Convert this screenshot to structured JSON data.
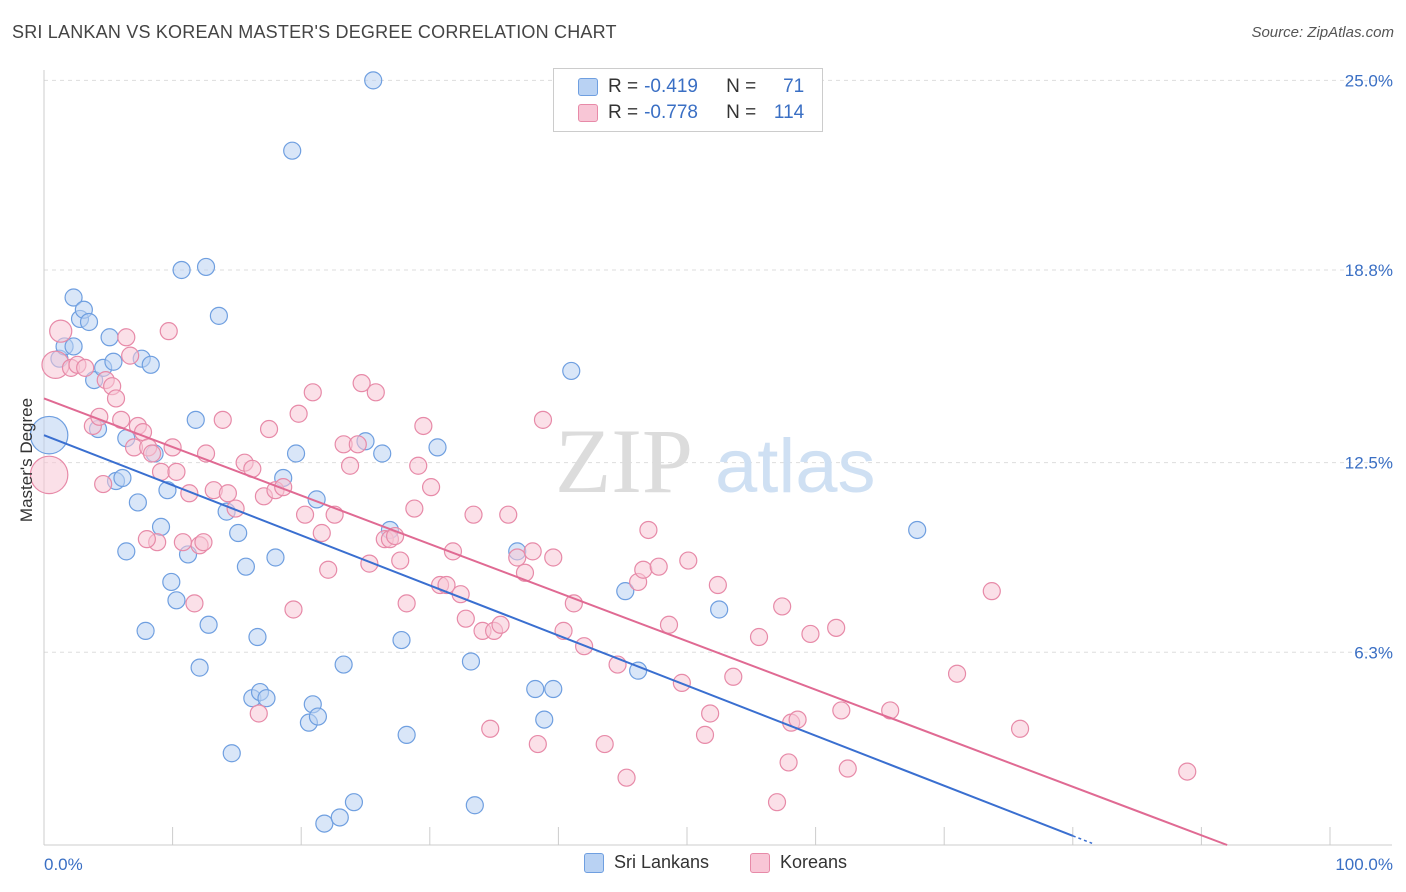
{
  "title": "SRI LANKAN VS KOREAN MASTER'S DEGREE CORRELATION CHART",
  "source": "Source: ZipAtlas.com",
  "watermark": {
    "zip": "ZIP",
    "atlas": "atlas"
  },
  "legend": {
    "rows": [
      {
        "r_label": "R =",
        "r_value": "-0.419",
        "n_label": "N =",
        "n_value": "71",
        "color": "#6f9fe0",
        "fill": "#b9d2f3"
      },
      {
        "r_label": "R =",
        "r_value": "-0.778",
        "n_label": "N =",
        "n_value": "114",
        "color": "#e78aa8",
        "fill": "#f8c6d6"
      }
    ]
  },
  "bottom_legend": [
    {
      "label": "Sri Lankans",
      "color": "#6f9fe0",
      "fill": "#b9d2f3"
    },
    {
      "label": "Koreans",
      "color": "#e78aa8",
      "fill": "#f8c6d6"
    }
  ],
  "chart_data": {
    "type": "scatter",
    "title": "SRI LANKAN VS KOREAN MASTER'S DEGREE CORRELATION CHART",
    "xlabel": "",
    "ylabel": "Master's Degree",
    "xlim": [
      0,
      100
    ],
    "ylim": [
      0,
      25.6
    ],
    "x_tick_labels": [
      "0.0%",
      "100.0%"
    ],
    "y_ticks": [
      6.3,
      12.5,
      18.8,
      25.0
    ],
    "y_tick_labels": [
      "6.3%",
      "12.5%",
      "18.8%",
      "25.0%"
    ],
    "grid": "horizontal dashed",
    "legend_placement": "top-center",
    "series": [
      {
        "name": "Sri Lankans",
        "color": "#3a6fd0",
        "fill": "#b9d2f3",
        "stroke": "#6f9fe0",
        "trend": {
          "x": [
            0,
            80
          ],
          "y": [
            13.4,
            0.3
          ]
        },
        "points": [
          [
            0.4,
            13.4,
            2.2
          ],
          [
            1.2,
            15.9,
            1
          ],
          [
            1.6,
            16.3,
            1
          ],
          [
            2.3,
            16.3,
            1
          ],
          [
            2.3,
            17.9,
            1
          ],
          [
            2.8,
            17.2,
            1
          ],
          [
            3.1,
            17.5,
            1
          ],
          [
            3.5,
            17.1,
            1
          ],
          [
            3.9,
            15.2,
            1
          ],
          [
            4.2,
            13.6,
            1
          ],
          [
            4.6,
            15.6,
            1
          ],
          [
            5.1,
            16.6,
            1
          ],
          [
            5.4,
            15.8,
            1
          ],
          [
            5.6,
            11.9,
            1
          ],
          [
            6.1,
            12.0,
            1
          ],
          [
            6.4,
            13.3,
            1
          ],
          [
            6.4,
            9.6,
            1
          ],
          [
            7.3,
            11.2,
            1
          ],
          [
            7.6,
            15.9,
            1
          ],
          [
            7.9,
            7.0,
            1
          ],
          [
            8.3,
            15.7,
            1
          ],
          [
            8.6,
            12.8,
            1
          ],
          [
            9.1,
            10.4,
            1
          ],
          [
            9.6,
            11.6,
            1
          ],
          [
            9.9,
            8.6,
            1
          ],
          [
            10.3,
            8.0,
            1
          ],
          [
            10.7,
            18.8,
            1
          ],
          [
            11.2,
            9.5,
            1
          ],
          [
            11.8,
            13.9,
            1
          ],
          [
            12.1,
            5.8,
            1
          ],
          [
            12.6,
            18.9,
            1
          ],
          [
            12.8,
            7.2,
            1
          ],
          [
            13.6,
            17.3,
            1
          ],
          [
            14.2,
            10.9,
            1
          ],
          [
            14.6,
            3.0,
            1
          ],
          [
            15.1,
            10.2,
            1
          ],
          [
            15.7,
            9.1,
            1
          ],
          [
            16.2,
            4.8,
            1
          ],
          [
            16.6,
            6.8,
            1
          ],
          [
            16.8,
            5.0,
            1
          ],
          [
            17.3,
            4.8,
            1
          ],
          [
            18.0,
            9.4,
            1
          ],
          [
            18.6,
            12.0,
            1
          ],
          [
            19.3,
            22.7,
            1
          ],
          [
            19.6,
            12.8,
            1
          ],
          [
            20.6,
            4.0,
            1
          ],
          [
            20.9,
            4.6,
            1
          ],
          [
            21.3,
            4.2,
            1
          ],
          [
            21.8,
            0.7,
            1
          ],
          [
            23.0,
            0.9,
            1
          ],
          [
            23.3,
            5.9,
            1
          ],
          [
            24.1,
            1.4,
            1
          ],
          [
            25.0,
            13.2,
            1
          ],
          [
            25.6,
            25.0,
            1
          ],
          [
            26.3,
            12.8,
            1
          ],
          [
            26.9,
            10.3,
            1
          ],
          [
            27.8,
            6.7,
            1
          ],
          [
            28.2,
            3.6,
            1
          ],
          [
            30.6,
            13.0,
            1
          ],
          [
            33.2,
            6.0,
            1
          ],
          [
            33.5,
            1.3,
            1
          ],
          [
            36.8,
            9.6,
            1
          ],
          [
            38.2,
            5.1,
            1
          ],
          [
            38.9,
            4.1,
            1
          ],
          [
            39.6,
            5.1,
            1
          ],
          [
            41.0,
            15.5,
            1
          ],
          [
            45.2,
            8.3,
            1
          ],
          [
            46.2,
            5.7,
            1
          ],
          [
            52.5,
            7.7,
            1
          ],
          [
            67.9,
            10.3,
            1
          ],
          [
            21.2,
            11.3,
            1
          ]
        ]
      },
      {
        "name": "Koreans",
        "color": "#e06a93",
        "fill": "#f8c6d6",
        "stroke": "#e78aa8",
        "trend": {
          "x": [
            0,
            92
          ],
          "y": [
            14.6,
            0.0
          ]
        },
        "points": [
          [
            0.4,
            12.1,
            2.2
          ],
          [
            0.9,
            15.7,
            1.6
          ],
          [
            1.3,
            16.8,
            1.3
          ],
          [
            2.1,
            15.6,
            1
          ],
          [
            2.6,
            15.7,
            1
          ],
          [
            3.2,
            15.6,
            1
          ],
          [
            3.8,
            13.7,
            1
          ],
          [
            4.3,
            14.0,
            1
          ],
          [
            4.8,
            15.2,
            1
          ],
          [
            5.3,
            15.0,
            1
          ],
          [
            5.6,
            14.6,
            1
          ],
          [
            6.0,
            13.9,
            1
          ],
          [
            6.4,
            16.6,
            1
          ],
          [
            6.7,
            16.0,
            1
          ],
          [
            7.0,
            13.0,
            1
          ],
          [
            7.3,
            13.7,
            1
          ],
          [
            7.7,
            13.5,
            1
          ],
          [
            8.1,
            13.0,
            1
          ],
          [
            8.4,
            12.8,
            1
          ],
          [
            8.8,
            9.9,
            1
          ],
          [
            9.1,
            12.2,
            1
          ],
          [
            9.7,
            16.8,
            1
          ],
          [
            10.0,
            13.0,
            1
          ],
          [
            10.3,
            12.2,
            1
          ],
          [
            10.8,
            9.9,
            1
          ],
          [
            11.3,
            11.5,
            1
          ],
          [
            11.7,
            7.9,
            1
          ],
          [
            12.1,
            9.8,
            1
          ],
          [
            12.6,
            12.8,
            1
          ],
          [
            13.2,
            11.6,
            1
          ],
          [
            13.9,
            13.9,
            1
          ],
          [
            14.3,
            11.5,
            1
          ],
          [
            14.9,
            11.0,
            1
          ],
          [
            15.6,
            12.5,
            1
          ],
          [
            16.2,
            12.3,
            1
          ],
          [
            16.7,
            4.3,
            1
          ],
          [
            17.1,
            11.4,
            1
          ],
          [
            17.5,
            13.6,
            1
          ],
          [
            18.0,
            11.6,
            1
          ],
          [
            18.6,
            11.7,
            1
          ],
          [
            19.4,
            7.7,
            1
          ],
          [
            19.8,
            14.1,
            1
          ],
          [
            20.3,
            10.8,
            1
          ],
          [
            20.9,
            14.8,
            1
          ],
          [
            21.6,
            10.2,
            1
          ],
          [
            22.1,
            9.0,
            1
          ],
          [
            22.6,
            10.8,
            1
          ],
          [
            23.3,
            13.1,
            1
          ],
          [
            23.8,
            12.4,
            1
          ],
          [
            24.4,
            13.1,
            1
          ],
          [
            24.7,
            15.1,
            1
          ],
          [
            25.3,
            9.2,
            1
          ],
          [
            25.8,
            14.8,
            1
          ],
          [
            26.5,
            10.0,
            1
          ],
          [
            26.9,
            10.0,
            1
          ],
          [
            27.3,
            10.1,
            1
          ],
          [
            27.7,
            9.3,
            1
          ],
          [
            28.2,
            7.9,
            1
          ],
          [
            28.8,
            11.0,
            1
          ],
          [
            29.1,
            12.4,
            1
          ],
          [
            29.5,
            13.7,
            1
          ],
          [
            30.1,
            11.7,
            1
          ],
          [
            30.8,
            8.5,
            1
          ],
          [
            31.3,
            8.5,
            1
          ],
          [
            31.8,
            9.6,
            1
          ],
          [
            32.4,
            8.2,
            1
          ],
          [
            32.8,
            7.4,
            1
          ],
          [
            33.4,
            10.8,
            1
          ],
          [
            34.1,
            7.0,
            1
          ],
          [
            34.7,
            3.8,
            1
          ],
          [
            35.0,
            7.0,
            1
          ],
          [
            35.5,
            7.2,
            1
          ],
          [
            36.1,
            10.8,
            1
          ],
          [
            36.8,
            9.4,
            1
          ],
          [
            37.4,
            8.9,
            1
          ],
          [
            38.0,
            9.6,
            1
          ],
          [
            38.4,
            3.3,
            1
          ],
          [
            38.8,
            13.9,
            1
          ],
          [
            39.6,
            9.4,
            1
          ],
          [
            40.4,
            7.0,
            1
          ],
          [
            41.2,
            7.9,
            1
          ],
          [
            42.0,
            6.5,
            1
          ],
          [
            43.6,
            3.3,
            1
          ],
          [
            44.6,
            5.9,
            1
          ],
          [
            45.3,
            2.2,
            1
          ],
          [
            46.2,
            8.6,
            1
          ],
          [
            46.6,
            9.0,
            1
          ],
          [
            47.0,
            10.3,
            1
          ],
          [
            47.8,
            9.1,
            1
          ],
          [
            48.6,
            7.2,
            1
          ],
          [
            49.6,
            5.3,
            1
          ],
          [
            50.1,
            9.3,
            1
          ],
          [
            51.4,
            3.6,
            1
          ],
          [
            51.8,
            4.3,
            1
          ],
          [
            52.4,
            8.5,
            1
          ],
          [
            53.6,
            5.5,
            1
          ],
          [
            55.6,
            6.8,
            1
          ],
          [
            57.0,
            1.4,
            1
          ],
          [
            57.4,
            7.8,
            1
          ],
          [
            57.9,
            2.7,
            1
          ],
          [
            58.1,
            4.0,
            1
          ],
          [
            58.6,
            4.1,
            1
          ],
          [
            59.6,
            6.9,
            1
          ],
          [
            61.6,
            7.1,
            1
          ],
          [
            62.0,
            4.4,
            1
          ],
          [
            62.5,
            2.5,
            1
          ],
          [
            65.8,
            4.4,
            1
          ],
          [
            71.0,
            5.6,
            1
          ],
          [
            73.7,
            8.3,
            1
          ],
          [
            75.9,
            3.8,
            1
          ],
          [
            88.9,
            2.4,
            1
          ],
          [
            12.4,
            9.9,
            1
          ],
          [
            4.6,
            11.8,
            1
          ],
          [
            8.0,
            10.0,
            1
          ]
        ]
      }
    ]
  }
}
